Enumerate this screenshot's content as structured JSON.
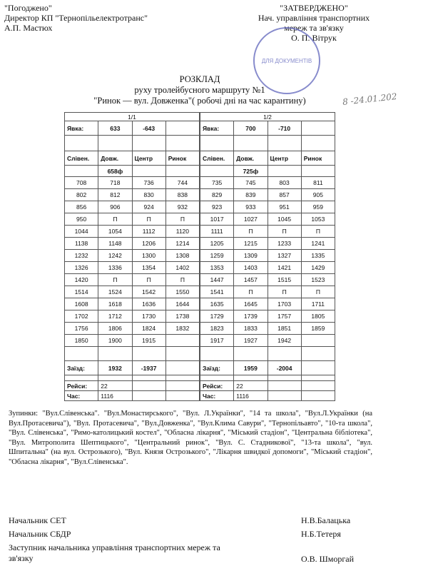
{
  "header": {
    "left": [
      "\"Погоджено\"",
      "Директор КП \"Тернопільелектротранс\"",
      "А.П. Мастюх"
    ],
    "right": [
      "\"ЗАТВЕРДЖЕНО\"",
      "Нач. управління транспортних",
      "мереж та зв'язку",
      "О. П. Вітрук"
    ],
    "stamp": "ДЛЯ ДОКУМЕНТІВ",
    "handwritten_date": "8 -24.01.202"
  },
  "title": {
    "line1": "РОЗКЛАД",
    "line2": "руху тролейбусного маршруту №1",
    "line3": "\"Ринок — вул. Довженка\"( робочі дні на час карантину)"
  },
  "tables": [
    {
      "label": "1/1",
      "yavka_label": "Явка:",
      "yavka": [
        "633",
        "-643"
      ],
      "columns": [
        "Слівен.",
        "Довж.",
        "Центр",
        "Ринок"
      ],
      "start": "658ф",
      "rows": [
        [
          "708",
          "718",
          "736",
          "744"
        ],
        [
          "802",
          "812",
          "830",
          "838"
        ],
        [
          "856",
          "906",
          "924",
          "932"
        ],
        [
          "950",
          "П",
          "П",
          "П"
        ],
        [
          "1044",
          "1054",
          "1112",
          "1120"
        ],
        [
          "1138",
          "1148",
          "1206",
          "1214"
        ],
        [
          "1232",
          "1242",
          "1300",
          "1308"
        ],
        [
          "1326",
          "1336",
          "1354",
          "1402"
        ],
        [
          "1420",
          "П",
          "П",
          "П"
        ],
        [
          "1514",
          "1524",
          "1542",
          "1550"
        ],
        [
          "1608",
          "1618",
          "1636",
          "1644"
        ],
        [
          "1702",
          "1712",
          "1730",
          "1738"
        ],
        [
          "1756",
          "1806",
          "1824",
          "1832"
        ],
        [
          "1850",
          "1900",
          "1915"
        ]
      ],
      "zaizd_label": "Заїзд:",
      "zaizd": [
        "1932",
        "-1937"
      ],
      "reisy_label": "Рейси:",
      "reisy": "22",
      "chas_label": "Час:",
      "chas": "1116"
    },
    {
      "label": "1/2",
      "yavka_label": "Явка:",
      "yavka": [
        "700",
        "-710"
      ],
      "columns": [
        "Слівен.",
        "Довж.",
        "Центр",
        "Ринок"
      ],
      "start": "725ф",
      "rows": [
        [
          "735",
          "745",
          "803",
          "811"
        ],
        [
          "829",
          "839",
          "857",
          "905"
        ],
        [
          "923",
          "933",
          "951",
          "959"
        ],
        [
          "1017",
          "1027",
          "1045",
          "1053"
        ],
        [
          "1111",
          "П",
          "П",
          "П"
        ],
        [
          "1205",
          "1215",
          "1233",
          "1241"
        ],
        [
          "1259",
          "1309",
          "1327",
          "1335"
        ],
        [
          "1353",
          "1403",
          "1421",
          "1429"
        ],
        [
          "1447",
          "1457",
          "1515",
          "1523"
        ],
        [
          "1541",
          "П",
          "П",
          "П"
        ],
        [
          "1635",
          "1645",
          "1703",
          "1711"
        ],
        [
          "1729",
          "1739",
          "1757",
          "1805"
        ],
        [
          "1823",
          "1833",
          "1851",
          "1859"
        ],
        [
          "1917",
          "1927",
          "1942"
        ]
      ],
      "zaizd_label": "Заїзд:",
      "zaizd": [
        "1959",
        "-2004"
      ],
      "reisy_label": "Рейси:",
      "reisy": "22",
      "chas_label": "Час:",
      "chas": "1116"
    }
  ],
  "stops": "Зупинки: \"Вул.Слівенська\". \"Вул.Монастирського\", \"Вул. Л.Українки\", \"14 та школа\", \"Вул.Л.Українки (на Вул.Протасевича\"), \"Вул. Протасевича\", \"Вул.Довженка\", \"Вул.Клима Савури\", \"Тернопільавто\", \"10-та школа\", \"Вул. Слівенська\", \"Римо-католицький костел\", \"Обласна лікарня\", \"Міський стадіон\", \"Центральна бібліотека\", \"Вул. Митрополита Шептицького\", \"Центральний ринок\", \"Вул. С. Стадникової\", \"13-та школа\", \"вул. Шпитальна\" (на вул. Острозького), \"Вул. Князя Острозького\", \"Лікарня швидкої допомоги\", \"Міський стадіон\", \"Обласна лікарня\", \"Вул.Слівенська\".",
  "signatures": [
    {
      "role": "Начальник СЕТ",
      "name": "Н.В.Балацька"
    },
    {
      "role": "Начальник СБДР",
      "name": "Н.Б.Тетеря"
    },
    {
      "role": "Заступник начальника управління транспортних мереж та зв'язку",
      "name": "О.В. Шморгай"
    }
  ]
}
